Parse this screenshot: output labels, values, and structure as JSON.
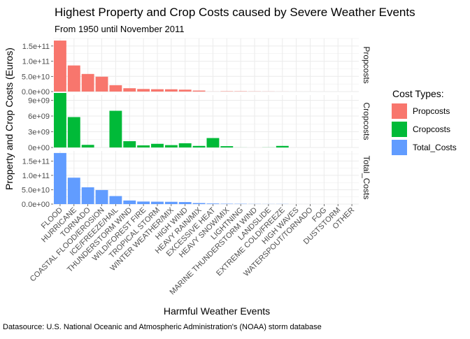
{
  "chart_data": {
    "type": "bar",
    "title": "Highest Property and Crop Costs caused by Severe Weather Events",
    "subtitle": "From 1950 until November 2011",
    "xlabel": "Harmful Weather Events",
    "ylabel": "Property and Crop Costs (Euros)",
    "caption": "Datasource: U.S. National Oceanic and Atmospheric Administration's (NOAA) storm database",
    "legend": {
      "title": "Cost Types:",
      "position": "right"
    },
    "grid": true,
    "categories": [
      "FLOOD",
      "HURRICANE",
      "TORNADO",
      "COASTAL FLOOD/EROSION",
      "ICE/FREEZE/HAIL",
      "THUNDERSTORM WIND",
      "WILD/FOREST FIRE",
      "TROPICAL STORM",
      "WINTER WEATHER/MIX",
      "HIGH WIND",
      "HEAVY RAIN/MIX",
      "EXCESSIVE HEAT",
      "HEAVY SNOW/MIX",
      "LIGHTNING",
      "MARINE THUNDERSTORM WIND",
      "LANDSLIDE",
      "EXTREME COLD/FREEZE",
      "HIGH WAVES",
      "WATERSPOUT/TORNADO",
      "FOG",
      "DUSTSTORM",
      "OTHER"
    ],
    "series": [
      {
        "name": "Propcosts",
        "color": "#F8766D",
        "ylim": [
          0,
          175000000000.0
        ],
        "ticks": [
          0,
          50000000000.0,
          100000000000.0,
          150000000000.0
        ],
        "tick_labels": [
          "0.0e+00",
          "5.0e+10",
          "1.0e+11",
          "1.5e+11"
        ],
        "values": [
          168000000000.0,
          86000000000.0,
          58000000000.0,
          49000000000.0,
          21000000000.0,
          11000000000.0,
          8500000000.0,
          7700000000.0,
          7500000000.0,
          6300000000.0,
          3300000000.0,
          180000000.0,
          990000000.0,
          930000000.0,
          500000000.0,
          330000000.0,
          150000000.0,
          50000000.0,
          60000000.0,
          25000000.0,
          6000000.0,
          10000000.0
        ]
      },
      {
        "name": "Cropcosts",
        "color": "#00BA38",
        "ylim": [
          0,
          10000000000.0
        ],
        "ticks": [
          0,
          3000000000.0,
          6000000000.0,
          9000000000.0
        ],
        "tick_labels": [
          "0e+00",
          "3e+09",
          "6e+09",
          "9e+09"
        ],
        "values": [
          10400000000.0,
          5800000000.0,
          500000000.0,
          2000000.0,
          7000000000.0,
          1200000000.0,
          400000000.0,
          700000000.0,
          450000000.0,
          800000000.0,
          300000000.0,
          1800000000.0,
          250000000.0,
          10000000.0,
          0,
          20000000.0,
          300000000.0,
          0,
          0,
          0,
          0,
          1000000.0
        ]
      },
      {
        "name": "Total_Costs",
        "color": "#619CFF",
        "ylim": [
          0,
          185000000000.0
        ],
        "ticks": [
          0,
          50000000000.0,
          100000000000.0,
          150000000000.0
        ],
        "tick_labels": [
          "0.0e+00",
          "5.0e+10",
          "1.0e+11",
          "1.5e+11"
        ],
        "values": [
          178000000000.0,
          92000000000.0,
          58500000000.0,
          49000000000.0,
          28000000000.0,
          12500000000.0,
          8900000000.0,
          8400000000.0,
          8000000000.0,
          7100000000.0,
          3600000000.0,
          2000000000.0,
          1200000000.0,
          940000000.0,
          500000000.0,
          350000000.0,
          450000000.0,
          50000000.0,
          60000000.0,
          25000000.0,
          6000000.0,
          11000000.0
        ]
      }
    ]
  }
}
